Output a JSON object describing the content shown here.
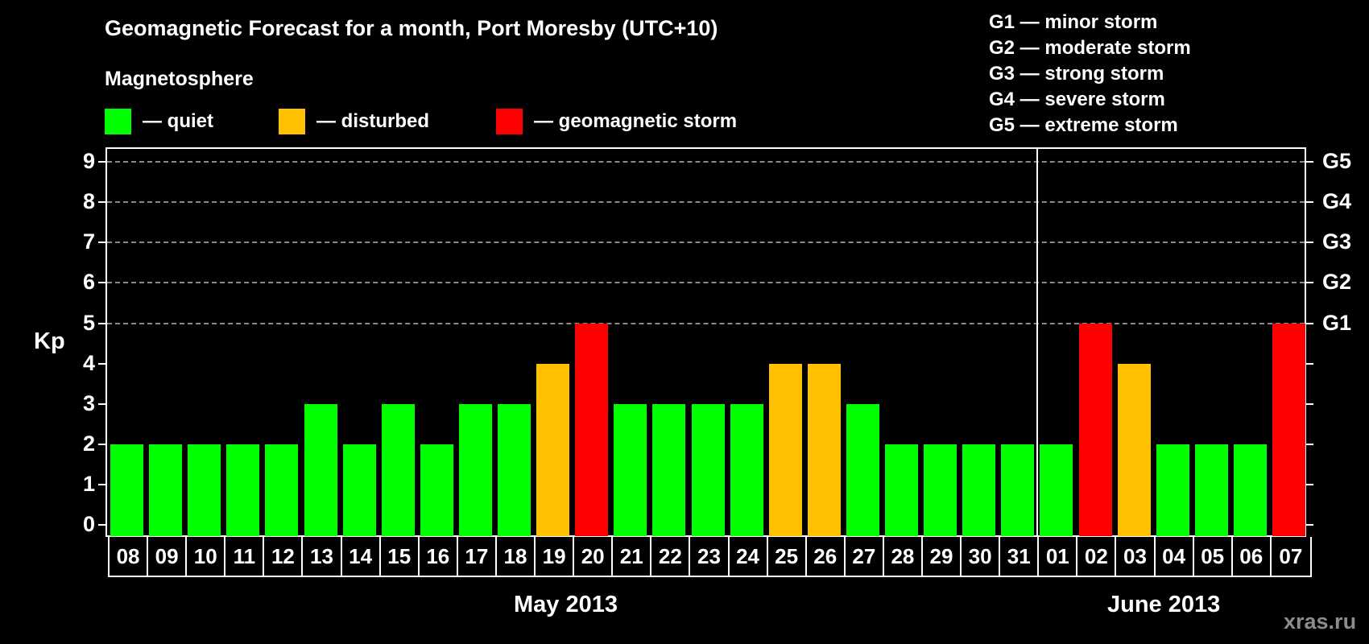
{
  "header": {
    "title": "Geomagnetic Forecast for a month, Port Moresby (UTC+10)",
    "section_label": "Magnetosphere"
  },
  "legend": [
    {
      "label": "— quiet",
      "color": "#00ff00"
    },
    {
      "label": "— disturbed",
      "color": "#ffc000"
    },
    {
      "label": "— geomagnetic storm",
      "color": "#ff0000"
    }
  ],
  "storm_scale": [
    "G1 — minor storm",
    "G2 — moderate storm",
    "G3 — strong storm",
    "G4 — severe storm",
    "G5 — extreme storm"
  ],
  "axes": {
    "ylabel": "Kp",
    "yticks": [
      "0",
      "1",
      "2",
      "3",
      "4",
      "5",
      "6",
      "7",
      "8",
      "9"
    ],
    "right_ticks": [
      {
        "value": 5,
        "label": "G1"
      },
      {
        "value": 6,
        "label": "G2"
      },
      {
        "value": 7,
        "label": "G3"
      },
      {
        "value": 8,
        "label": "G4"
      },
      {
        "value": 9,
        "label": "G5"
      }
    ],
    "months": [
      "May 2013",
      "June 2013"
    ]
  },
  "watermark": "xras.ru",
  "colors": {
    "quiet": "#00ff00",
    "disturbed": "#ffc000",
    "storm": "#ff0000",
    "background": "#000000"
  },
  "chart_data": {
    "type": "bar",
    "title": "Geomagnetic Forecast for a month, Port Moresby (UTC+10)",
    "xlabel": "May 2013 / June 2013",
    "ylabel": "Kp",
    "ylim": [
      0,
      9
    ],
    "grid": "dashed horizontal lines at Kp 5–9",
    "legend_position": "top",
    "categories": [
      "08",
      "09",
      "10",
      "11",
      "12",
      "13",
      "14",
      "15",
      "16",
      "17",
      "18",
      "19",
      "20",
      "21",
      "22",
      "23",
      "24",
      "25",
      "26",
      "27",
      "28",
      "29",
      "30",
      "31",
      "01",
      "02",
      "03",
      "04",
      "05",
      "06",
      "07"
    ],
    "values": [
      2,
      2,
      2,
      2,
      2,
      3,
      2,
      3,
      2,
      3,
      3,
      4,
      5,
      3,
      3,
      3,
      3,
      4,
      4,
      3,
      2,
      2,
      2,
      2,
      2,
      5,
      4,
      2,
      2,
      2,
      5
    ],
    "status": [
      "quiet",
      "quiet",
      "quiet",
      "quiet",
      "quiet",
      "quiet",
      "quiet",
      "quiet",
      "quiet",
      "quiet",
      "quiet",
      "disturbed",
      "storm",
      "quiet",
      "quiet",
      "quiet",
      "quiet",
      "disturbed",
      "disturbed",
      "quiet",
      "quiet",
      "quiet",
      "quiet",
      "quiet",
      "quiet",
      "storm",
      "disturbed",
      "quiet",
      "quiet",
      "quiet",
      "storm"
    ],
    "month_groups": [
      {
        "month": "May 2013",
        "days": [
          "08",
          "09",
          "10",
          "11",
          "12",
          "13",
          "14",
          "15",
          "16",
          "17",
          "18",
          "19",
          "20",
          "21",
          "22",
          "23",
          "24",
          "25",
          "26",
          "27",
          "28",
          "29",
          "30",
          "31"
        ]
      },
      {
        "month": "June 2013",
        "days": [
          "01",
          "02",
          "03",
          "04",
          "05",
          "06",
          "07"
        ]
      }
    ],
    "right_axis_labels": {
      "5": "G1",
      "6": "G2",
      "7": "G3",
      "8": "G4",
      "9": "G5"
    }
  }
}
